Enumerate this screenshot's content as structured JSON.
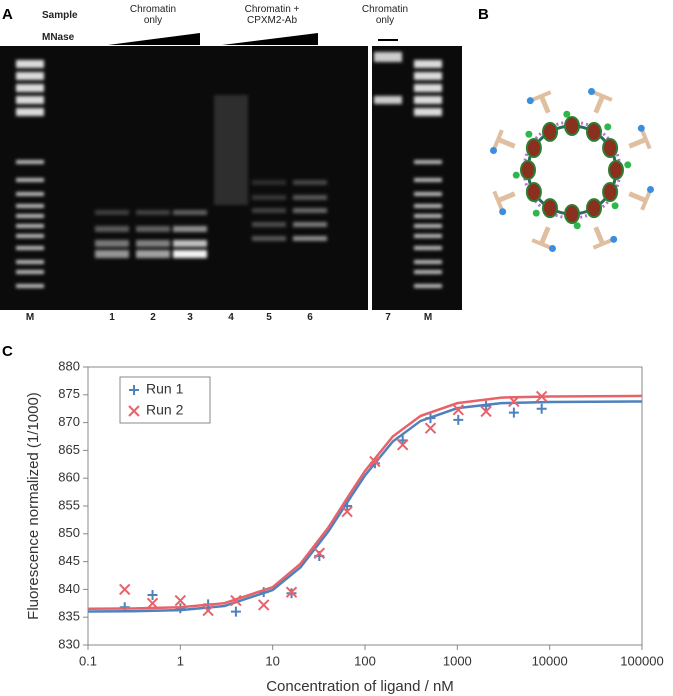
{
  "panel_a": {
    "letter": "A",
    "sample_label": "Sample",
    "mnase_label": "MNase",
    "groups": [
      "Chromatin only",
      "Chromatin + CPXM2-Ab",
      "Chromatin only"
    ],
    "lanes": [
      "M",
      "1",
      "2",
      "3",
      "4",
      "5",
      "6",
      "7",
      "M"
    ]
  },
  "panel_b": {
    "letter": "B"
  },
  "panel_c": {
    "letter": "C"
  },
  "chart_data": {
    "type": "scatter",
    "x_label": "Concentration of ligand / nM",
    "y_label": "Fluorescence normalized (1/1000)",
    "log_x": true,
    "xlim": [
      0.1,
      100000
    ],
    "xticks": [
      0.1,
      1,
      10,
      100,
      1000,
      10000,
      100000
    ],
    "ylim": [
      830,
      880
    ],
    "yticks": [
      830,
      835,
      840,
      845,
      850,
      855,
      860,
      865,
      870,
      875,
      880
    ],
    "legend": "upper left",
    "x": [
      0.25,
      0.5,
      1,
      2,
      4,
      8,
      16,
      32,
      64,
      128,
      256,
      512,
      1024,
      2048,
      4096,
      8192
    ],
    "series": [
      {
        "name": "Run 1",
        "color": "#4f81bd",
        "marker": "plus",
        "values": [
          836.8,
          839,
          836.6,
          837.3,
          836,
          839.5,
          839.3,
          846,
          855,
          862.7,
          866.8,
          870.8,
          870.5,
          873,
          871.8,
          872.5
        ],
        "fit": {
          "x": [
            0.1,
            0.3,
            1,
            3,
            10,
            20,
            40,
            70,
            100,
            200,
            400,
            1000,
            3000,
            10000,
            100000
          ],
          "y": [
            836.02,
            836.07,
            836.28,
            837.01,
            839.9,
            843.97,
            850.4,
            856.6,
            860.5,
            866.6,
            870.3,
            872.6,
            873.5,
            873.7,
            873.8
          ]
        }
      },
      {
        "name": "Run 2",
        "color": "#e8626a",
        "marker": "cross",
        "values": [
          840,
          837.5,
          838,
          836.2,
          838,
          837.2,
          839.5,
          846.5,
          854,
          863,
          866,
          869,
          872.3,
          872,
          873.8,
          874.7
        ],
        "fit": {
          "x": [
            0.1,
            0.3,
            1,
            3,
            10,
            20,
            40,
            70,
            100,
            200,
            400,
            1000,
            3000,
            10000,
            100000
          ],
          "y": [
            836.52,
            836.57,
            836.78,
            837.52,
            840.4,
            844.6,
            851.1,
            857.4,
            861.3,
            867.5,
            871.2,
            873.5,
            874.5,
            874.7,
            874.8
          ]
        }
      }
    ]
  }
}
